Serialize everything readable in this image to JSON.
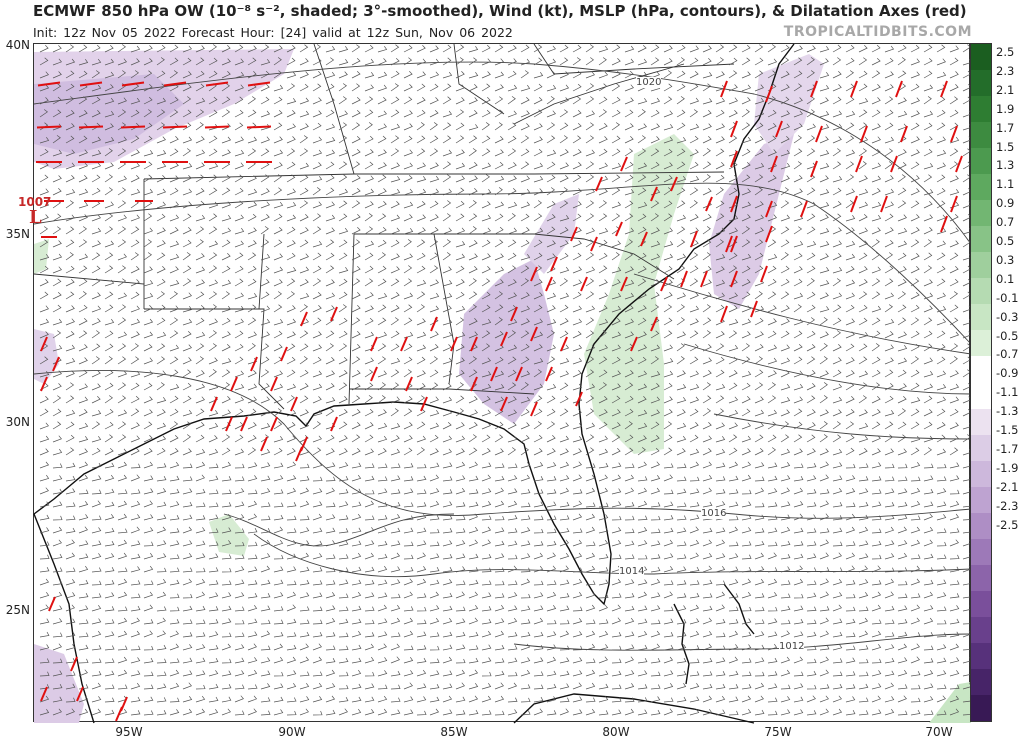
{
  "header": {
    "title": "ECMWF 850 hPa OW (10⁻⁸ s⁻², shaded; 3°-smoothed), Wind (kt), MSLP (hPa, contours), & Dilatation Axes (red)",
    "subtitle": "Init: 12z Nov 05 2022   Forecast Hour: [24]   valid at 12z Sun, Nov 06 2022",
    "brand": "TROPICALTIDBITS.COM"
  },
  "map": {
    "lat_labels": [
      "40N",
      "35N",
      "30N",
      "25N"
    ],
    "lon_labels": [
      "95W",
      "90W",
      "85W",
      "80W",
      "75W",
      "70W"
    ],
    "pressure_labels": [
      "1020",
      "1016",
      "1014",
      "1012"
    ],
    "low_marker": {
      "value": "1007",
      "symbol": "L"
    }
  },
  "colorbar": {
    "labels": [
      "2.5",
      "2.3",
      "2.1",
      "1.9",
      "1.7",
      "1.5",
      "1.3",
      "1.1",
      "0.9",
      "0.7",
      "0.5",
      "0.3",
      "0.1",
      "-0.1",
      "-0.3",
      "-0.5",
      "-0.7",
      "-0.9",
      "-1.1",
      "-1.3",
      "-1.5",
      "-1.7",
      "-1.9",
      "-2.1",
      "-2.3",
      "-2.5"
    ],
    "colors": [
      "#1b5e20",
      "#236d2a",
      "#2e7d32",
      "#3d8b40",
      "#4c9a4f",
      "#5ea95f",
      "#72b672",
      "#88c387",
      "#9fcf9d",
      "#b5dbb2",
      "#c8e6c4",
      "#dcf0d8",
      "#ffffff",
      "#ffffff",
      "#ece2f0",
      "#dccde6",
      "#cdb8dc",
      "#bea3d1",
      "#ae8ec5",
      "#9d79b8",
      "#8c64aa",
      "#7a4f9b",
      "#69408c",
      "#57317b",
      "#472468",
      "#381955"
    ]
  }
}
